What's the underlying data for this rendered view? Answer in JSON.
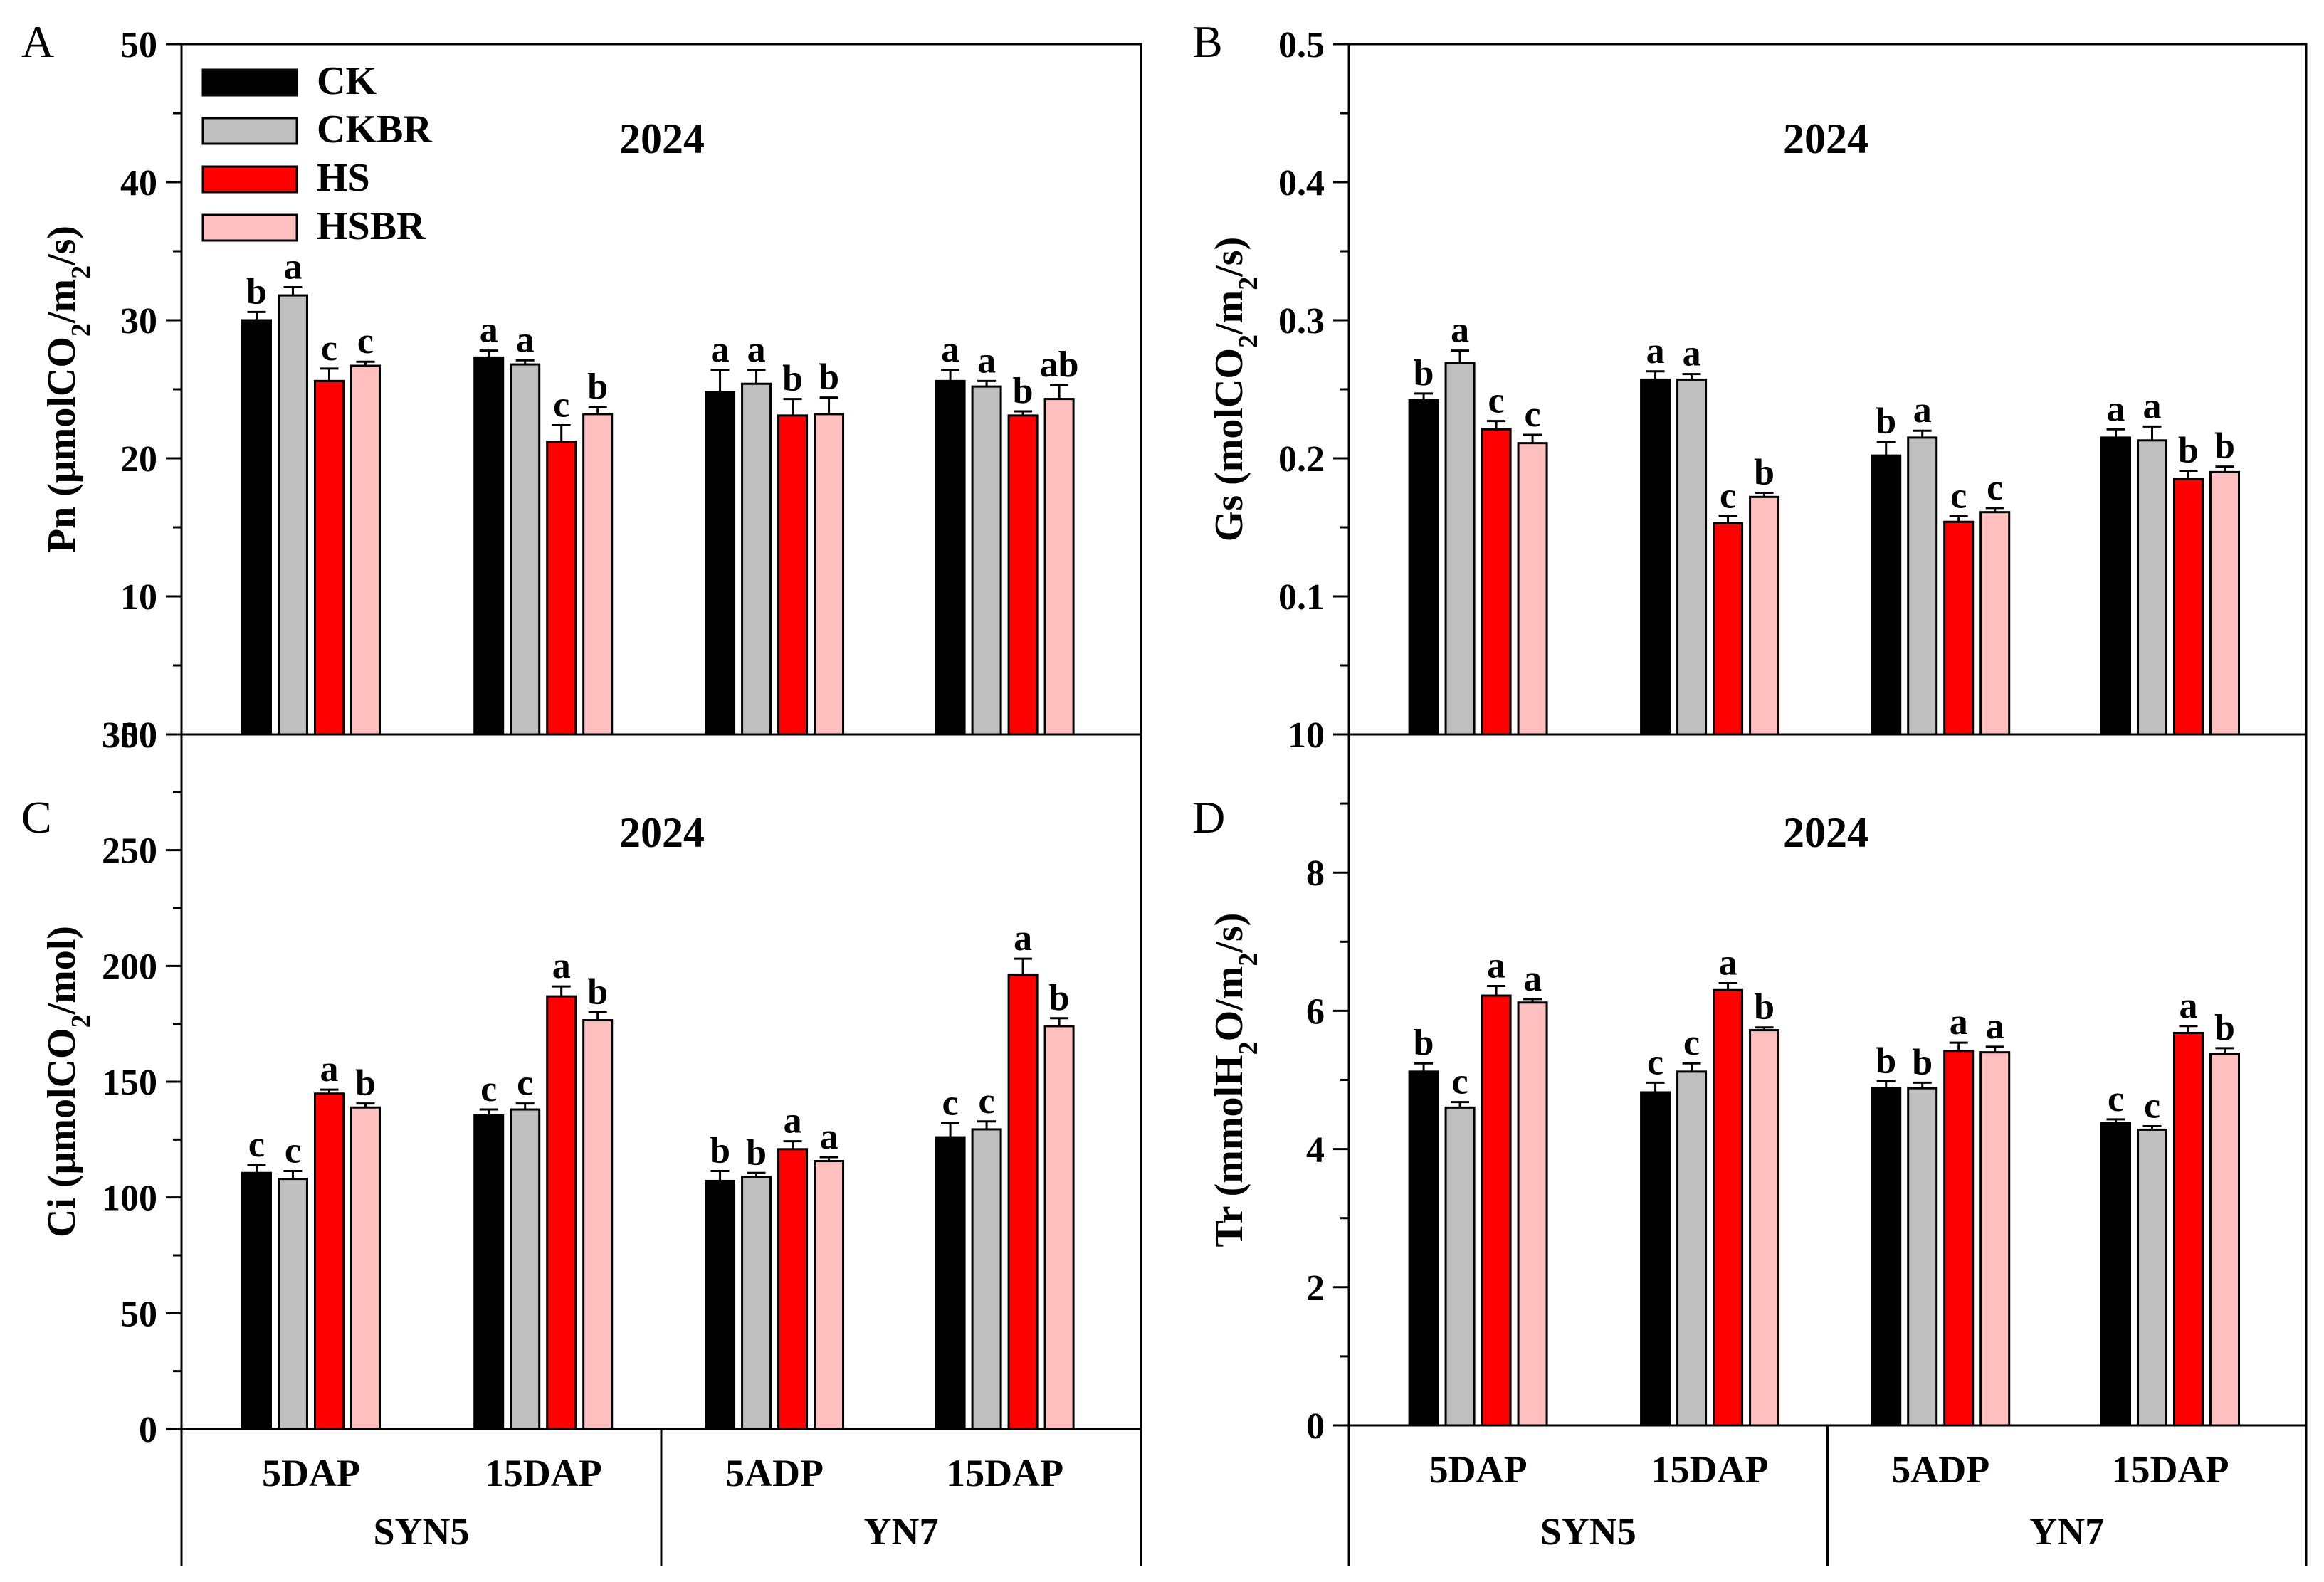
{
  "legend": [
    "CK",
    "CKBR",
    "HS",
    "HSBR"
  ],
  "colors": {
    "CK": "#000000",
    "CKBR": "#bfbfbf",
    "HS": "#ff0000",
    "HSBR": "#ffbfbf"
  },
  "x_axis": {
    "categories": [
      "5DAP",
      "15DAP",
      "5ADP",
      "15DAP"
    ],
    "groups": [
      "SYN5",
      "YN7"
    ]
  },
  "chart_data": [
    {
      "panel": "A",
      "type": "bar",
      "title": "2024",
      "ylabel_main": "Pn (μmolCO",
      "ylabel_sub": "2",
      "ylabel_main2": "/m",
      "ylabel_sub2": "2",
      "ylabel_end": "/s)",
      "ylim": [
        0,
        50
      ],
      "yticks": [
        "",
        "10",
        "20",
        "30",
        "40",
        "50"
      ],
      "bottom_label": "350",
      "series": [
        {
          "name": "CK",
          "values": [
            30.0,
            27.3,
            24.8,
            25.6
          ],
          "errors": [
            0.6,
            0.5,
            1.6,
            0.8
          ],
          "letters": [
            "b",
            "a",
            "a",
            "a"
          ]
        },
        {
          "name": "CKBR",
          "values": [
            31.8,
            26.8,
            25.4,
            25.2
          ],
          "errors": [
            0.6,
            0.3,
            1.0,
            0.4
          ],
          "letters": [
            "a",
            "a",
            "a",
            "a"
          ]
        },
        {
          "name": "HS",
          "values": [
            25.6,
            21.2,
            23.1,
            23.1
          ],
          "errors": [
            0.9,
            1.2,
            1.2,
            0.3
          ],
          "letters": [
            "c",
            "c",
            "b",
            "b"
          ]
        },
        {
          "name": "HSBR",
          "values": [
            26.7,
            23.2,
            23.2,
            24.3
          ],
          "errors": [
            0.3,
            0.5,
            1.2,
            1.0
          ],
          "letters": [
            "c",
            "b",
            "b",
            "ab"
          ]
        }
      ]
    },
    {
      "panel": "B",
      "type": "bar",
      "title": "2024",
      "ylabel_main": "Gs (molCO",
      "ylabel_sub": "2",
      "ylabel_main2": "/m",
      "ylabel_sub2": "2",
      "ylabel_end": "/s)",
      "ylim": [
        0,
        0.5
      ],
      "yticks": [
        "",
        "0.1",
        "0.2",
        "0.3",
        "0.4",
        "0.5"
      ],
      "bottom_label": "10",
      "series": [
        {
          "name": "CK",
          "values": [
            0.242,
            0.257,
            0.202,
            0.215
          ],
          "errors": [
            0.005,
            0.006,
            0.01,
            0.006
          ],
          "letters": [
            "b",
            "a",
            "b",
            "a"
          ]
        },
        {
          "name": "CKBR",
          "values": [
            0.269,
            0.257,
            0.215,
            0.213
          ],
          "errors": [
            0.009,
            0.004,
            0.005,
            0.01
          ],
          "letters": [
            "a",
            "a",
            "a",
            "a"
          ]
        },
        {
          "name": "HS",
          "values": [
            0.221,
            0.153,
            0.154,
            0.185
          ],
          "errors": [
            0.006,
            0.005,
            0.004,
            0.006
          ],
          "letters": [
            "c",
            "c",
            "c",
            "b"
          ]
        },
        {
          "name": "HSBR",
          "values": [
            0.211,
            0.172,
            0.161,
            0.19
          ],
          "errors": [
            0.006,
            0.003,
            0.003,
            0.004
          ],
          "letters": [
            "c",
            "b",
            "c",
            "b"
          ]
        }
      ]
    },
    {
      "panel": "C",
      "type": "bar",
      "title": "2024",
      "ylabel_main": "Ci (μmolCO",
      "ylabel_sub": "2",
      "ylabel_main2": "/mol)",
      "ylabel_sub2": "",
      "ylabel_end": "",
      "ylim": [
        0,
        350
      ],
      "yticks": [
        "0",
        "50",
        "100",
        "150",
        "200",
        "250",
        "300"
      ],
      "series": [
        {
          "name": "CK",
          "values": [
            129,
            158,
            125,
            147
          ],
          "errors": [
            4,
            3,
            5,
            7
          ],
          "letters": [
            "c",
            "c",
            "b",
            "c"
          ]
        },
        {
          "name": "CKBR",
          "values": [
            126,
            161,
            127,
            151
          ],
          "errors": [
            4,
            3,
            2,
            4
          ],
          "letters": [
            "c",
            "c",
            "b",
            "c"
          ]
        },
        {
          "name": "HS",
          "values": [
            169,
            218,
            141,
            229
          ],
          "errors": [
            2,
            5,
            4,
            8
          ],
          "letters": [
            "a",
            "a",
            "a",
            "a"
          ]
        },
        {
          "name": "HSBR",
          "values": [
            162,
            206,
            135,
            203
          ],
          "errors": [
            2,
            4,
            2,
            4
          ],
          "letters": [
            "b",
            "b",
            "a",
            "b"
          ]
        }
      ]
    },
    {
      "panel": "D",
      "type": "bar",
      "title": "2024",
      "ylabel_main": "Tr (mmolH",
      "ylabel_sub": "2",
      "ylabel_main2": "O/m",
      "ylabel_sub2": "2",
      "ylabel_end": "/s)",
      "ylim": [
        0,
        10
      ],
      "yticks": [
        "0",
        "2",
        "4",
        "6",
        "8",
        ""
      ],
      "series": [
        {
          "name": "CK",
          "values": [
            5.12,
            4.82,
            4.88,
            4.38
          ],
          "errors": [
            0.12,
            0.14,
            0.1,
            0.05
          ],
          "letters": [
            "b",
            "c",
            "b",
            "c"
          ]
        },
        {
          "name": "CKBR",
          "values": [
            4.6,
            5.12,
            4.88,
            4.28
          ],
          "errors": [
            0.08,
            0.12,
            0.08,
            0.05
          ],
          "letters": [
            "c",
            "c",
            "b",
            "c"
          ]
        },
        {
          "name": "HS",
          "values": [
            6.22,
            6.3,
            5.42,
            5.68
          ],
          "errors": [
            0.14,
            0.1,
            0.12,
            0.1
          ],
          "letters": [
            "a",
            "a",
            "a",
            "a"
          ]
        },
        {
          "name": "HSBR",
          "values": [
            6.12,
            5.72,
            5.4,
            5.38
          ],
          "errors": [
            0.05,
            0.04,
            0.08,
            0.08
          ],
          "letters": [
            "a",
            "b",
            "a",
            "b"
          ]
        }
      ]
    }
  ]
}
